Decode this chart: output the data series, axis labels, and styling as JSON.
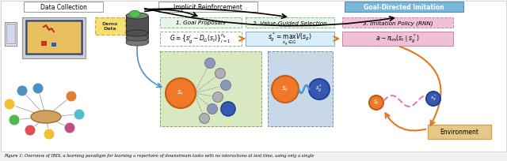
{
  "bg_color": "#f0f0f0",
  "white_bg": "#ffffff",
  "section_labels": {
    "data_collection": "Data Collection",
    "implicit_reinforcement": "Implicit Reinforcement",
    "goal_directed": "Goal-Directed Imitation"
  },
  "box_colors": {
    "goal_directed_header_bg": "#7ab8d8",
    "goal_directed_header_border": "#5590b8",
    "implicit_reinforcement_bg": "#ffffff",
    "implicit_reinforcement_border": "#999999",
    "data_collection_bg": "#ffffff",
    "data_collection_border": "#999999",
    "demo_data_bg": "#f5e070",
    "demo_data_border": "#c8b040",
    "goal_proposals_bg": "#e8f4e8",
    "goal_proposals_border": "#80b880",
    "value_guided_bg": "#e8f4e8",
    "value_guided_border": "#80b880",
    "imitation_policy_bg": "#f0c0d8",
    "imitation_policy_border": "#d080a8",
    "formula1_bg": "#ffffff",
    "formula1_border": "#80b880",
    "formula2_bg": "#d8eef8",
    "formula2_border": "#80b0d0",
    "formula3_bg": "#f0c0d8",
    "formula3_border": "#d080a8",
    "scatter_left_bg": "#d8e8c0",
    "scatter_left_border": "#80a860",
    "scatter_right_bg": "#c8d8e8",
    "scatter_right_border": "#7090b0",
    "environment_bg": "#e8c888",
    "environment_border": "#c8a848"
  },
  "node_colors": {
    "st_orange": "#f07828",
    "sg_blue": "#3858b0",
    "hub_tan": "#d4a060",
    "hub_border": "#a07030",
    "gray_node": "#b0b0b0",
    "blue_node": "#6090c0",
    "database_body": "#707070",
    "database_top": "#909090",
    "green_blob": "#50c050"
  },
  "arrow_colors": {
    "black": "#111111",
    "orange": "#e07820",
    "blue": "#5090d0"
  },
  "math_texts": {
    "goal_proposals": "1. Goal Proposals",
    "value_guided": "2. Value-Guided Selection",
    "imitation_policy": "3. Imitation Policy (RNN)",
    "formula1": "$G=\\{s_g^i\\sim D_G(s_t)\\}_{i=1}^{n_g}$",
    "formula2": "$s_g^*=\\underset{s_g\\in G}{\\max}V(s_g)$",
    "formula3": "$a\\sim\\pi_{\\rm im}(s_t\\mid s_g^*)$",
    "st_label": "$s_t$",
    "sg_star_label": "$s_g^*$"
  },
  "caption": "Figure 1: Overview of IRIS, a learning paradigm for learning a repertoire of downstream tasks with no interactions at test time, using only a single",
  "network_nodes": [
    [
      28,
      115,
      "#5090c0",
      7
    ],
    [
      12,
      132,
      "#f0c030",
      7
    ],
    [
      18,
      152,
      "#50b850",
      7
    ],
    [
      38,
      165,
      "#e05050",
      7
    ],
    [
      62,
      170,
      "#f0c030",
      7
    ],
    [
      88,
      162,
      "#c05080",
      7
    ],
    [
      100,
      145,
      "#50c0d0",
      7
    ],
    [
      90,
      122,
      "#e08030",
      7
    ],
    [
      48,
      112,
      "#5090c0",
      7
    ]
  ]
}
